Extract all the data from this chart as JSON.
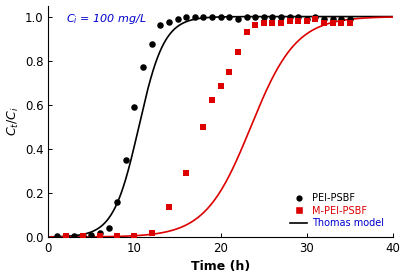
{
  "xlabel": "Time (h)",
  "ylabel": "$C_t$/$C_i$",
  "annotation": "$C_i$ = 100 mg/L",
  "annotation_color": "#0000cc",
  "xlim": [
    0,
    40
  ],
  "ylim": [
    0,
    1.05
  ],
  "xticks": [
    0,
    10,
    20,
    30,
    40
  ],
  "yticks": [
    0.0,
    0.2,
    0.4,
    0.6,
    0.8,
    1.0
  ],
  "pei_psbf_x": [
    1,
    2,
    3,
    4,
    5,
    6,
    7,
    8,
    9,
    10,
    11,
    12,
    13,
    14,
    15,
    16,
    17,
    18,
    19,
    20,
    21,
    22,
    23,
    24,
    25,
    26,
    27,
    28,
    29,
    30,
    31,
    32,
    33,
    34,
    35
  ],
  "pei_psbf_y": [
    0.003,
    0.003,
    0.003,
    0.005,
    0.01,
    0.02,
    0.04,
    0.16,
    0.35,
    0.59,
    0.77,
    0.875,
    0.96,
    0.975,
    0.99,
    1.0,
    1.0,
    1.0,
    1.0,
    1.0,
    1.0,
    0.99,
    1.0,
    1.0,
    1.0,
    1.0,
    1.0,
    1.0,
    1.0,
    0.99,
    1.0,
    0.99,
    0.99,
    0.99,
    0.99
  ],
  "m_pei_psbf_x": [
    2,
    4,
    6,
    8,
    10,
    12,
    14,
    16,
    18,
    19,
    20,
    21,
    22,
    23,
    24,
    25,
    26,
    27,
    28,
    29,
    30,
    31,
    32,
    33,
    34,
    35
  ],
  "m_pei_psbf_y": [
    0.003,
    0.003,
    0.003,
    0.003,
    0.005,
    0.02,
    0.135,
    0.29,
    0.5,
    0.62,
    0.685,
    0.75,
    0.84,
    0.93,
    0.96,
    0.97,
    0.97,
    0.97,
    0.98,
    0.98,
    0.98,
    0.99,
    0.97,
    0.97,
    0.97,
    0.97
  ],
  "thomas_black_kth": 0.68,
  "thomas_black_t0": 10.5,
  "thomas_red_kth": 0.38,
  "thomas_red_t0": 23.5,
  "pei_color": "#000000",
  "m_pei_color": "#dd0000",
  "background_color": "#ffffff",
  "legend_pei": "PEI-PSBF",
  "legend_m_pei": "M-PEI-PSBF",
  "legend_thomas": "Thomas model",
  "legend_thomas_color": "#0000cc"
}
